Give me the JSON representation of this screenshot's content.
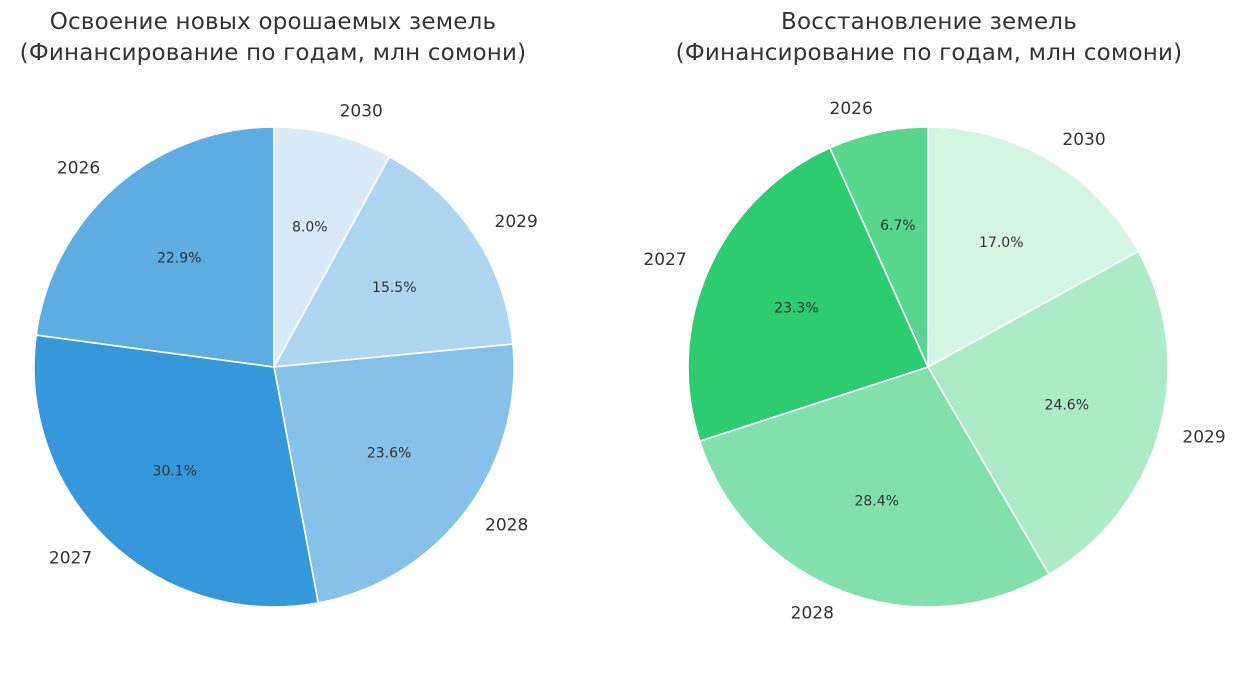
{
  "chart_data": [
    {
      "type": "pie",
      "title_line1": "Освоение новых орошаемых земель",
      "title_line2": "(Финансирование по годам, млн сомони)",
      "start_angle_deg": 90,
      "direction": "clockwise",
      "slices": [
        {
          "label": "2030",
          "percent": 8.0,
          "percent_label": "8.0%",
          "color": "#d6eaf8"
        },
        {
          "label": "2029",
          "percent": 15.5,
          "percent_label": "15.5%",
          "color": "#aed6f1"
        },
        {
          "label": "2028",
          "percent": 23.6,
          "percent_label": "23.6%",
          "color": "#85c1e9"
        },
        {
          "label": "2027",
          "percent": 30.1,
          "percent_label": "30.1%",
          "color": "#3498db"
        },
        {
          "label": "2026",
          "percent": 22.9,
          "percent_label": "22.9%",
          "color": "#5dade2"
        }
      ]
    },
    {
      "type": "pie",
      "title_line1": "Восстановление земель",
      "title_line2": "(Финансирование по годам, млн сомони)",
      "start_angle_deg": 90,
      "direction": "clockwise",
      "slices": [
        {
          "label": "2030",
          "percent": 17.0,
          "percent_label": "17.0%",
          "color": "#d5f5e3"
        },
        {
          "label": "2029",
          "percent": 24.6,
          "percent_label": "24.6%",
          "color": "#abebc6"
        },
        {
          "label": "2028",
          "percent": 28.4,
          "percent_label": "28.4%",
          "color": "#82e0aa"
        },
        {
          "label": "2027",
          "percent": 23.3,
          "percent_label": "23.3%",
          "color": "#2ecc71"
        },
        {
          "label": "2026",
          "percent": 6.7,
          "percent_label": "6.7%",
          "color": "#58d68d"
        }
      ]
    }
  ]
}
